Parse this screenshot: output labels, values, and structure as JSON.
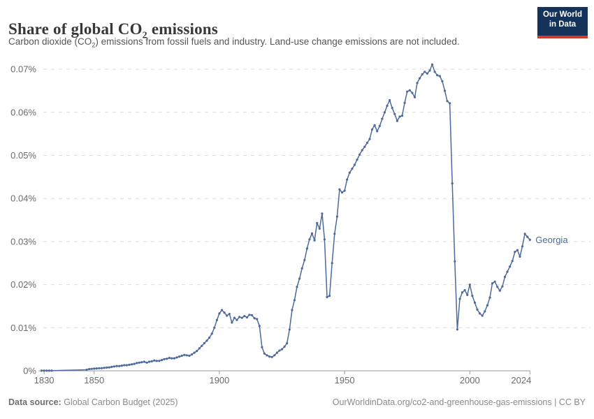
{
  "header": {
    "title_pre": "Share of global CO",
    "title_sub": "2",
    "title_post": " emissions",
    "subtitle_pre": "Carbon dioxide (CO",
    "subtitle_sub": "2",
    "subtitle_post": ") emissions from fossil fuels and industry. Land-use change emissions are not included.",
    "logo_line1": "Our World",
    "logo_line2": "in Data",
    "logo_bg_color": "#15325b",
    "logo_stripe_color": "#cf3a2d"
  },
  "footer": {
    "source_label": "Data source:",
    "source_value": " Global Carbon Budget (2025)",
    "link_text": "OurWorldinData.org/co2-and-greenhouse-gas-emissions | CC BY"
  },
  "chart_data": {
    "type": "line",
    "title": "Share of global CO2 emissions",
    "entity_label": "Georgia",
    "units": "%",
    "xlim": [
      1829,
      2024
    ],
    "ylim": [
      0,
      0.07
    ],
    "grid": "horizontal-dashed",
    "legend_position": "end-of-line-label",
    "line_color": "#4c6a9c",
    "axis_text_color": "#6b6b6b",
    "gridline_color": "#dcdcdc",
    "xticks": [
      1830,
      1850,
      1900,
      1950,
      2000,
      2024
    ],
    "yticks": [
      {
        "v": 0.0,
        "label": "0%"
      },
      {
        "v": 0.01,
        "label": "0.01%"
      },
      {
        "v": 0.02,
        "label": "0.02%"
      },
      {
        "v": 0.03,
        "label": "0.03%"
      },
      {
        "v": 0.04,
        "label": "0.04%"
      },
      {
        "v": 0.05,
        "label": "0.05%"
      },
      {
        "v": 0.06,
        "label": "0.06%"
      },
      {
        "v": 0.07,
        "label": "0.07%"
      }
    ],
    "series": [
      {
        "name": "Georgia",
        "points": [
          [
            1829,
            5e-05
          ],
          [
            1830,
            5e-05
          ],
          [
            1831,
            5e-05
          ],
          [
            1832,
            5e-05
          ],
          [
            1833,
            5e-05
          ],
          [
            1847,
            0.00025
          ],
          [
            1848,
            0.0004
          ],
          [
            1849,
            0.00045
          ],
          [
            1850,
            0.0005
          ],
          [
            1851,
            0.00055
          ],
          [
            1852,
            0.0006
          ],
          [
            1853,
            0.00062
          ],
          [
            1854,
            0.0007
          ],
          [
            1855,
            0.00075
          ],
          [
            1856,
            0.0008
          ],
          [
            1857,
            0.0009
          ],
          [
            1858,
            0.001
          ],
          [
            1859,
            0.0011
          ],
          [
            1860,
            0.0011
          ],
          [
            1861,
            0.0012
          ],
          [
            1862,
            0.0013
          ],
          [
            1863,
            0.0013
          ],
          [
            1864,
            0.0014
          ],
          [
            1865,
            0.0015
          ],
          [
            1866,
            0.0016
          ],
          [
            1867,
            0.0018
          ],
          [
            1868,
            0.0019
          ],
          [
            1869,
            0.002
          ],
          [
            1870,
            0.0021
          ],
          [
            1871,
            0.0019
          ],
          [
            1872,
            0.0021
          ],
          [
            1873,
            0.0022
          ],
          [
            1874,
            0.0024
          ],
          [
            1875,
            0.0023
          ],
          [
            1876,
            0.0023
          ],
          [
            1877,
            0.0025
          ],
          [
            1878,
            0.0027
          ],
          [
            1879,
            0.0028
          ],
          [
            1880,
            0.003
          ],
          [
            1881,
            0.0029
          ],
          [
            1882,
            0.0029
          ],
          [
            1883,
            0.0031
          ],
          [
            1884,
            0.0033
          ],
          [
            1885,
            0.0035
          ],
          [
            1886,
            0.0037
          ],
          [
            1887,
            0.0036
          ],
          [
            1888,
            0.0035
          ],
          [
            1889,
            0.0038
          ],
          [
            1890,
            0.0042
          ],
          [
            1891,
            0.0046
          ],
          [
            1892,
            0.0052
          ],
          [
            1893,
            0.0058
          ],
          [
            1894,
            0.0064
          ],
          [
            1895,
            0.007
          ],
          [
            1896,
            0.0077
          ],
          [
            1897,
            0.0086
          ],
          [
            1898,
            0.01
          ],
          [
            1899,
            0.0118
          ],
          [
            1900,
            0.0133
          ],
          [
            1901,
            0.0141
          ],
          [
            1902,
            0.0135
          ],
          [
            1903,
            0.0128
          ],
          [
            1904,
            0.0132
          ],
          [
            1905,
            0.0112
          ],
          [
            1906,
            0.0123
          ],
          [
            1907,
            0.0118
          ],
          [
            1908,
            0.0125
          ],
          [
            1909,
            0.0123
          ],
          [
            1910,
            0.0127
          ],
          [
            1911,
            0.0124
          ],
          [
            1912,
            0.013
          ],
          [
            1913,
            0.0129
          ],
          [
            1914,
            0.0122
          ],
          [
            1915,
            0.012
          ],
          [
            1916,
            0.0104
          ],
          [
            1917,
            0.0055
          ],
          [
            1918,
            0.004
          ],
          [
            1919,
            0.0036
          ],
          [
            1920,
            0.0033
          ],
          [
            1921,
            0.0032
          ],
          [
            1922,
            0.0036
          ],
          [
            1923,
            0.0042
          ],
          [
            1924,
            0.0047
          ],
          [
            1925,
            0.005
          ],
          [
            1926,
            0.0056
          ],
          [
            1927,
            0.0064
          ],
          [
            1928,
            0.0096
          ],
          [
            1929,
            0.0141
          ],
          [
            1930,
            0.0164
          ],
          [
            1931,
            0.0195
          ],
          [
            1932,
            0.0214
          ],
          [
            1933,
            0.0238
          ],
          [
            1934,
            0.0257
          ],
          [
            1935,
            0.0284
          ],
          [
            1936,
            0.0305
          ],
          [
            1937,
            0.0319
          ],
          [
            1938,
            0.0303
          ],
          [
            1939,
            0.0343
          ],
          [
            1940,
            0.033
          ],
          [
            1941,
            0.0365
          ],
          [
            1942,
            0.0305
          ],
          [
            1943,
            0.0171
          ],
          [
            1944,
            0.0174
          ],
          [
            1945,
            0.025
          ],
          [
            1946,
            0.0318
          ],
          [
            1947,
            0.0358
          ],
          [
            1948,
            0.0421
          ],
          [
            1949,
            0.0414
          ],
          [
            1950,
            0.0418
          ],
          [
            1951,
            0.0444
          ],
          [
            1952,
            0.046
          ],
          [
            1953,
            0.0469
          ],
          [
            1954,
            0.0478
          ],
          [
            1955,
            0.049
          ],
          [
            1956,
            0.0502
          ],
          [
            1957,
            0.0512
          ],
          [
            1958,
            0.052
          ],
          [
            1959,
            0.0529
          ],
          [
            1960,
            0.0538
          ],
          [
            1961,
            0.056
          ],
          [
            1962,
            0.057
          ],
          [
            1963,
            0.0556
          ],
          [
            1964,
            0.0568
          ],
          [
            1965,
            0.0585
          ],
          [
            1966,
            0.06
          ],
          [
            1967,
            0.0615
          ],
          [
            1968,
            0.0628
          ],
          [
            1969,
            0.061
          ],
          [
            1970,
            0.0596
          ],
          [
            1971,
            0.058
          ],
          [
            1972,
            0.059
          ],
          [
            1973,
            0.0592
          ],
          [
            1974,
            0.0622
          ],
          [
            1975,
            0.0648
          ],
          [
            1976,
            0.0651
          ],
          [
            1977,
            0.0645
          ],
          [
            1978,
            0.0635
          ],
          [
            1979,
            0.0668
          ],
          [
            1980,
            0.0679
          ],
          [
            1981,
            0.0688
          ],
          [
            1982,
            0.0694
          ],
          [
            1983,
            0.069
          ],
          [
            1984,
            0.0697
          ],
          [
            1985,
            0.0711
          ],
          [
            1986,
            0.0694
          ],
          [
            1987,
            0.0686
          ],
          [
            1988,
            0.0684
          ],
          [
            1989,
            0.0672
          ],
          [
            1990,
            0.065
          ],
          [
            1991,
            0.0626
          ],
          [
            1992,
            0.0621
          ],
          [
            1993,
            0.0435
          ],
          [
            1994,
            0.0254
          ],
          [
            1995,
            0.0096
          ],
          [
            1996,
            0.0167
          ],
          [
            1997,
            0.0182
          ],
          [
            1998,
            0.0187
          ],
          [
            1999,
            0.0176
          ],
          [
            2000,
            0.02
          ],
          [
            2001,
            0.0174
          ],
          [
            2002,
            0.0158
          ],
          [
            2003,
            0.0142
          ],
          [
            2004,
            0.0133
          ],
          [
            2005,
            0.0128
          ],
          [
            2006,
            0.0138
          ],
          [
            2007,
            0.0152
          ],
          [
            2008,
            0.017
          ],
          [
            2009,
            0.0203
          ],
          [
            2010,
            0.0207
          ],
          [
            2011,
            0.0195
          ],
          [
            2012,
            0.0186
          ],
          [
            2013,
            0.0196
          ],
          [
            2014,
            0.0218
          ],
          [
            2015,
            0.023
          ],
          [
            2016,
            0.0242
          ],
          [
            2017,
            0.0255
          ],
          [
            2018,
            0.0276
          ],
          [
            2019,
            0.028
          ],
          [
            2020,
            0.0265
          ],
          [
            2021,
            0.0289
          ],
          [
            2022,
            0.0318
          ],
          [
            2023,
            0.0311
          ],
          [
            2024,
            0.0304
          ]
        ]
      }
    ]
  }
}
